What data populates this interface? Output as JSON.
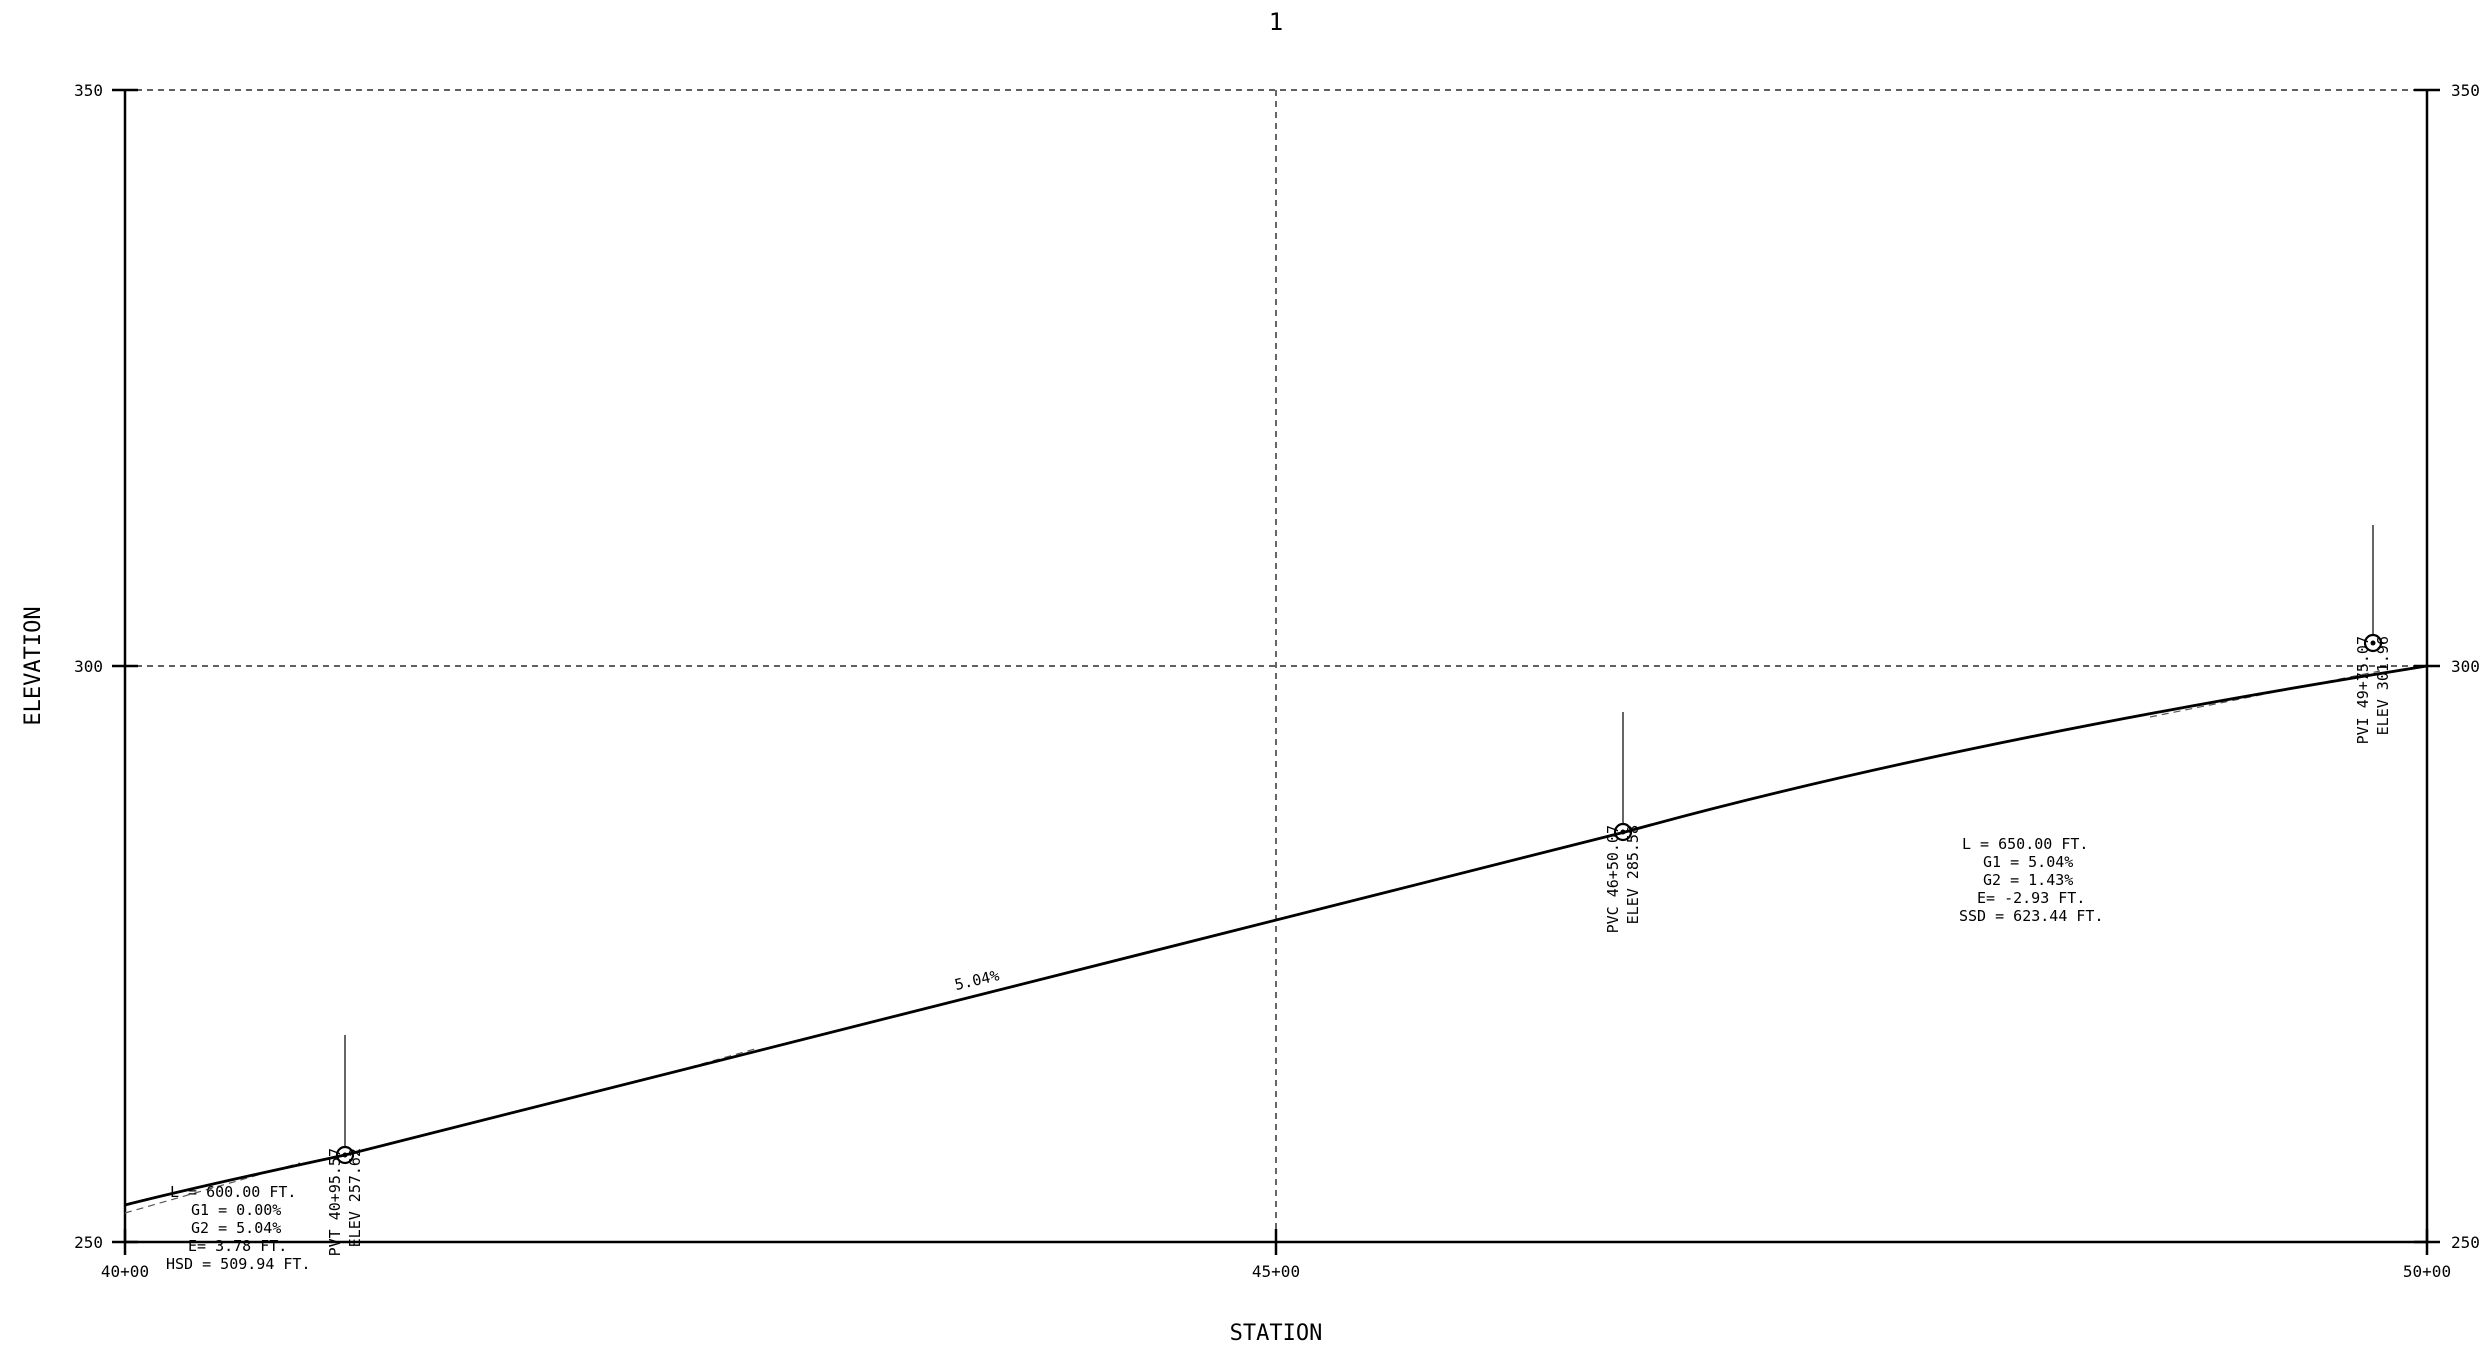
{
  "sheet": {
    "title": "1"
  },
  "axes": {
    "xlabel": "STATION",
    "ylabel": "ELEVATION",
    "x_ticks": [
      "40+00",
      "45+00",
      "50+00"
    ],
    "y_ticks_left": [
      "350",
      "300",
      "250"
    ],
    "y_ticks_right": [
      "350",
      "300",
      "250"
    ]
  },
  "chart_data": {
    "type": "line",
    "title": "1",
    "xlabel": "STATION",
    "ylabel": "ELEVATION",
    "x_unit": "ft (station)",
    "xlim": [
      4000,
      5000
    ],
    "ylim": [
      250,
      350
    ],
    "grid": true,
    "series": [
      {
        "x": [
          4000,
          4095.57,
          4650.07,
          4975.07,
          5000
        ],
        "y": [
          253.2,
          257.62,
          285.58,
          301.96,
          300.0
        ]
      }
    ],
    "grade_label": "5.04%",
    "points": [
      {
        "label1": "PVT 40+95.57",
        "label2": "ELEV 257.62",
        "station": 4095.57,
        "elev": 257.62
      },
      {
        "label1": "PVC 46+50.07",
        "label2": "ELEV 285.58",
        "station": 4650.07,
        "elev": 285.58
      },
      {
        "label1": "PVI 49+75.07",
        "label2": "ELEV 301.96",
        "station": 4975.07,
        "elev": 301.96
      }
    ],
    "curves": [
      {
        "lines": [
          "L =  600.00 FT.",
          "G1 = 0.00%",
          "G2 = 5.04%",
          "E= 3.78 FT.",
          "HSD = 509.94 FT."
        ]
      },
      {
        "lines": [
          "L =  650.00 FT.",
          "G1 = 5.04%",
          "G2 = 1.43%",
          "E= -2.93 FT.",
          "SSD = 623.44 FT."
        ]
      }
    ]
  }
}
